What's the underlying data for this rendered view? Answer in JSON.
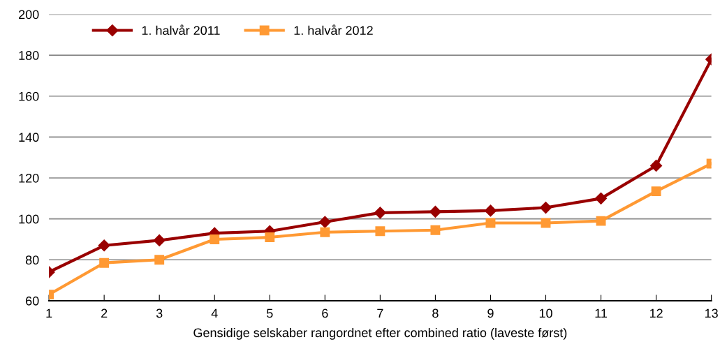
{
  "chart_data": {
    "type": "line",
    "xlabel": "Gensidige selskaber rangordnet efter combined ratio (laveste først)",
    "categories": [
      "1",
      "2",
      "3",
      "4",
      "5",
      "6",
      "7",
      "8",
      "9",
      "10",
      "11",
      "12",
      "13"
    ],
    "series": [
      {
        "name": "1. halvår 2011",
        "color": "#990000",
        "marker": "diamond",
        "values": [
          74,
          87,
          89.5,
          93,
          94,
          98.5,
          103,
          103.5,
          104,
          105.5,
          110,
          126,
          178
        ]
      },
      {
        "name": "1. halvår 2012",
        "color": "#ff9933",
        "marker": "square",
        "values": [
          63,
          78.5,
          80,
          90,
          91,
          93.5,
          94,
          94.5,
          98,
          98,
          99,
          113.5,
          127
        ]
      }
    ],
    "ylim": [
      60,
      200
    ],
    "yticks": [
      60,
      80,
      100,
      120,
      140,
      160,
      180,
      200
    ],
    "grid": "y",
    "legend": "top left",
    "line_style": "solid"
  }
}
